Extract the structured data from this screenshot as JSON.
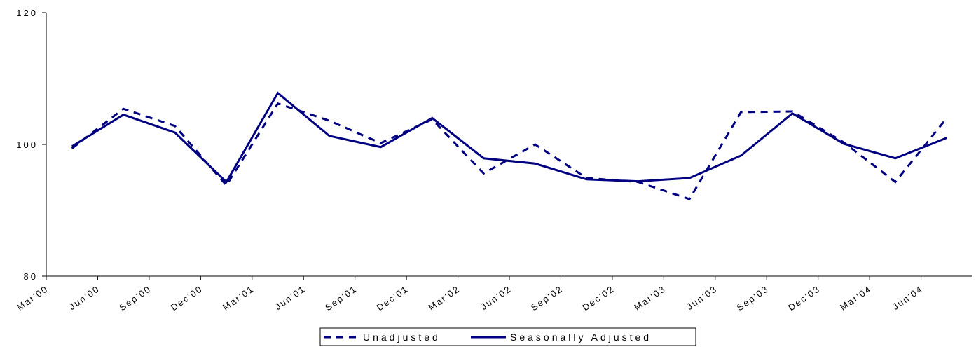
{
  "chart_data": {
    "type": "line",
    "categories": [
      "Mar'00",
      "Jun'00",
      "Sep'00",
      "Dec'00",
      "Mar'01",
      "Jun'01",
      "Sep'01",
      "Dec'01",
      "Mar'02",
      "Jun'02",
      "Sep'02",
      "Dec'02",
      "Mar'03",
      "Jun'03",
      "Sep'03",
      "Dec'03",
      "Mar'04",
      "Jun'04"
    ],
    "series": [
      {
        "name": "Unadjusted",
        "color": "#000080",
        "dashed": true,
        "values": [
          99.4,
          105.4,
          102.8,
          93.8,
          106.2,
          103.6,
          100.2,
          103.8,
          95.6,
          100.0,
          94.9,
          94.3,
          91.7,
          104.9,
          105.0,
          100.3,
          94.3,
          104.0
        ]
      },
      {
        "name": "Seasonally Adjusted",
        "color": "#000080",
        "dashed": false,
        "values": [
          99.7,
          104.5,
          101.8,
          94.3,
          107.8,
          101.3,
          99.6,
          104.0,
          97.9,
          97.1,
          94.7,
          94.4,
          94.9,
          98.3,
          104.7,
          100.1,
          97.9,
          101.0
        ]
      }
    ],
    "ylim": [
      80,
      120
    ],
    "yticks": [
      80,
      100,
      120
    ],
    "grid": false,
    "legend": "bottom"
  }
}
